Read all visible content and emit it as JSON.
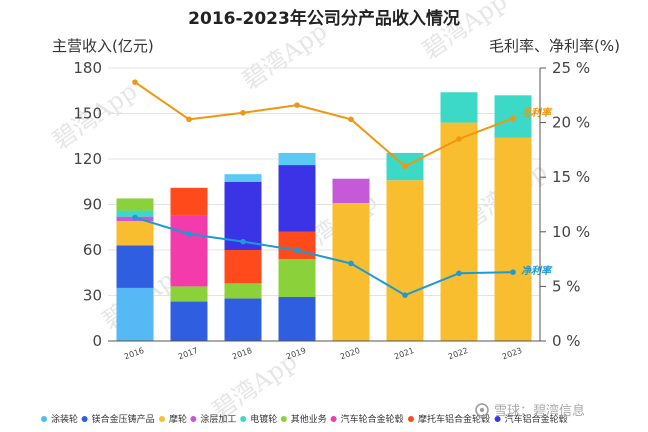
{
  "chart_data": {
    "type": "bar",
    "title": "2016-2023年公司分产品收入情况",
    "ylabel_left": "主营收入(亿元)",
    "ylabel_right": "毛利率、净利率(%)",
    "ylim_left": [
      0,
      180
    ],
    "yticks_left": [
      "0",
      "30",
      "60",
      "90",
      "120",
      "150",
      "180"
    ],
    "ylim_right": [
      0,
      25
    ],
    "yticks_right": [
      "0 %",
      "5 %",
      "10 %",
      "15 %",
      "20 %",
      "25 %"
    ],
    "categories": [
      "2016",
      "2017",
      "2018",
      "2019",
      "2020",
      "2021",
      "2022",
      "2023"
    ],
    "series": [
      {
        "name": "涂装轮",
        "color": "#56b9f5",
        "values": [
          35,
          0,
          0,
          0,
          0,
          0,
          0,
          0
        ]
      },
      {
        "name": "镁合金压铸产品",
        "color": "#2f5fe0",
        "values": [
          28,
          26,
          28,
          29,
          0,
          0,
          0,
          0
        ]
      },
      {
        "name": "摩轮",
        "color": "#f9be2f",
        "values": [
          16,
          0,
          0,
          0,
          91,
          106,
          144,
          134
        ]
      },
      {
        "name": "涂层加工",
        "color": "#c45ad7",
        "values": [
          3,
          0,
          0,
          0,
          16,
          0,
          0,
          0
        ]
      },
      {
        "name": "电镀轮",
        "color": "#3cd9c6",
        "values": [
          4,
          0,
          0,
          0,
          0,
          18,
          20,
          28
        ]
      },
      {
        "name": "其他业务",
        "color": "#8ad13a",
        "values": [
          8,
          10,
          10,
          25,
          0,
          0,
          0,
          0
        ]
      },
      {
        "name": "汽车轮合金轮毂",
        "color": "#f33bab",
        "values": [
          0,
          47,
          0,
          0,
          0,
          0,
          0,
          0
        ]
      },
      {
        "name": "摩托车铝合金轮毂",
        "color": "#ff4a1c",
        "values": [
          0,
          18,
          22,
          18,
          0,
          0,
          0,
          0
        ]
      },
      {
        "name": "汽车铝合金轮毂",
        "color": "#3b34e6",
        "values": [
          0,
          0,
          45,
          44,
          0,
          0,
          0,
          0
        ]
      },
      {
        "name": "",
        "color": "#5cc9f5",
        "values": [
          0,
          0,
          5,
          8,
          0,
          0,
          0,
          0
        ]
      }
    ],
    "lines": [
      {
        "name": "毛利率",
        "axis": "right",
        "color": "#f0960f",
        "values": [
          23.7,
          20.3,
          20.9,
          21.6,
          20.3,
          16.0,
          18.5,
          20.4
        ]
      },
      {
        "name": "净利率",
        "axis": "right",
        "color": "#1c9ad6",
        "values": [
          11.3,
          9.8,
          9.1,
          8.3,
          7.1,
          4.2,
          6.2,
          6.3
        ]
      }
    ],
    "legend_position": "bottom"
  },
  "watermark": {
    "logo_text": "雪球：碧湾信息",
    "repeat_text": "碧湾App"
  }
}
